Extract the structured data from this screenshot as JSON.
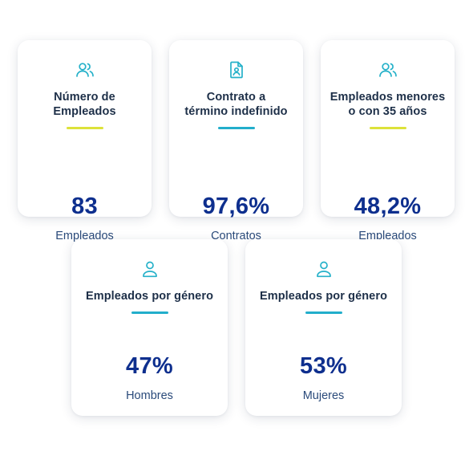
{
  "colors": {
    "icon": "#25b1c9",
    "accent_yellow": "#dde23a",
    "accent_cyan": "#22aecb",
    "value": "#0e2f8e",
    "title": "#1d2f48"
  },
  "cards": [
    {
      "icon": "users-icon",
      "title": "Número de\nEmpleados",
      "value": "83",
      "unit": "Empleados",
      "underline": "yellow"
    },
    {
      "icon": "document-person-icon",
      "title": "Contrato a\ntérmino indefinido",
      "value": "97,6%",
      "unit": "Contratos",
      "underline": "cyan"
    },
    {
      "icon": "users-icon",
      "title": "Empleados menores\no con 35 años",
      "value": "48,2%",
      "unit": "Empleados",
      "underline": "yellow"
    },
    {
      "icon": "user-icon",
      "title": "Empleados por género",
      "value": "47%",
      "unit": "Hombres",
      "underline": "cyan"
    },
    {
      "icon": "user-icon",
      "title": "Empleados por género",
      "value": "53%",
      "unit": "Mujeres",
      "underline": "cyan"
    }
  ]
}
